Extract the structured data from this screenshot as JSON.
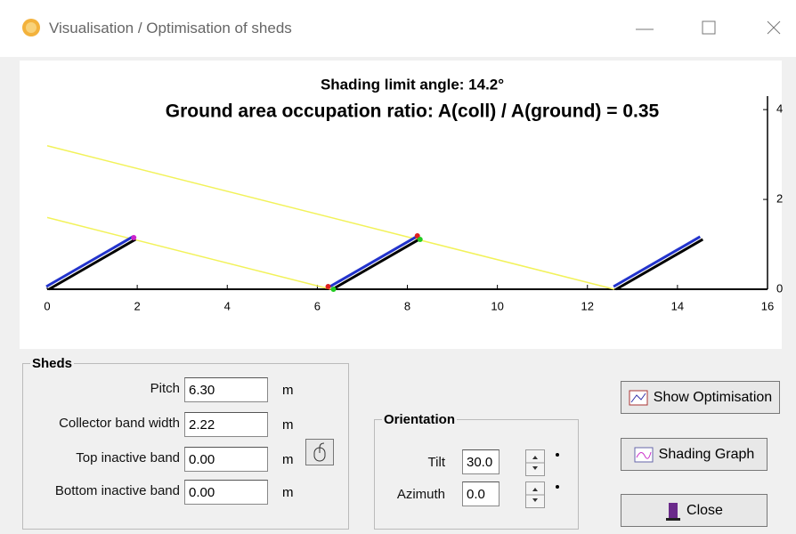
{
  "window": {
    "title": "Visualisation / Optimisation of sheds"
  },
  "chart_data": {
    "type": "sheds",
    "title": "Shading limit angle:  14.2°",
    "subtitle": "Ground area occupation ratio:  A(coll) / A(ground) = 0.35",
    "xlim": [
      0,
      16
    ],
    "xticks": [
      0,
      2,
      4,
      6,
      8,
      10,
      12,
      14,
      16
    ],
    "ylim": [
      0,
      4.3
    ],
    "yticks": [
      0,
      2,
      4
    ]
  },
  "sheds": {
    "legend": "Sheds",
    "fields": [
      {
        "label": "Pitch",
        "value": "6.30",
        "unit": "m"
      },
      {
        "label": "Collector band width",
        "value": "2.22",
        "unit": "m"
      },
      {
        "label": "Top inactive band",
        "value": "0.00",
        "unit": "m"
      },
      {
        "label": "Bottom inactive band",
        "value": "0.00",
        "unit": "m"
      }
    ]
  },
  "orientation": {
    "legend": "Orientation",
    "fields": [
      {
        "label": "Tilt",
        "value": "30.0"
      },
      {
        "label": "Azimuth",
        "value": "0.0"
      }
    ]
  },
  "buttons": [
    "Show Optimisation",
    "Shading Graph",
    "Close"
  ]
}
